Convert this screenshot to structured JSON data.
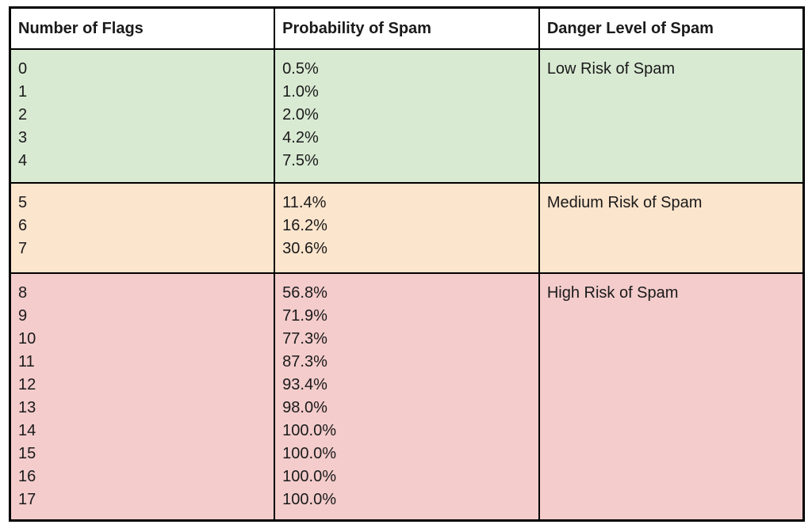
{
  "page": {
    "background": "#ffffff"
  },
  "table": {
    "border_color": "#000000",
    "header_background": "#ffffff",
    "text_color": "#1a1a1a",
    "columns": [
      "Number of Flags",
      "Probability of Spam",
      "Danger Level of Spam"
    ],
    "groups": [
      {
        "risk_label": "Low Risk of Spam",
        "background": "#d9ead3",
        "flags": [
          "0",
          "1",
          "2",
          "3",
          "4"
        ],
        "probabilities": [
          "0.5%",
          "1.0%",
          "2.0%",
          "4.2%",
          "7.5%"
        ]
      },
      {
        "risk_label": "Medium Risk of Spam",
        "background": "#fce5cd",
        "flags": [
          "5",
          "6",
          "7"
        ],
        "probabilities": [
          "11.4%",
          "16.2%",
          "30.6%"
        ]
      },
      {
        "risk_label": "High Risk of Spam",
        "background": "#f4cccc",
        "flags": [
          "8",
          "9",
          "10",
          "11",
          "12",
          "13",
          "14",
          "15",
          "16",
          "17"
        ],
        "probabilities": [
          "56.8%",
          "71.9%",
          "77.3%",
          "87.3%",
          "93.4%",
          "98.0%",
          "100.0%",
          "100.0%",
          "100.0%",
          "100.0%"
        ]
      }
    ]
  }
}
